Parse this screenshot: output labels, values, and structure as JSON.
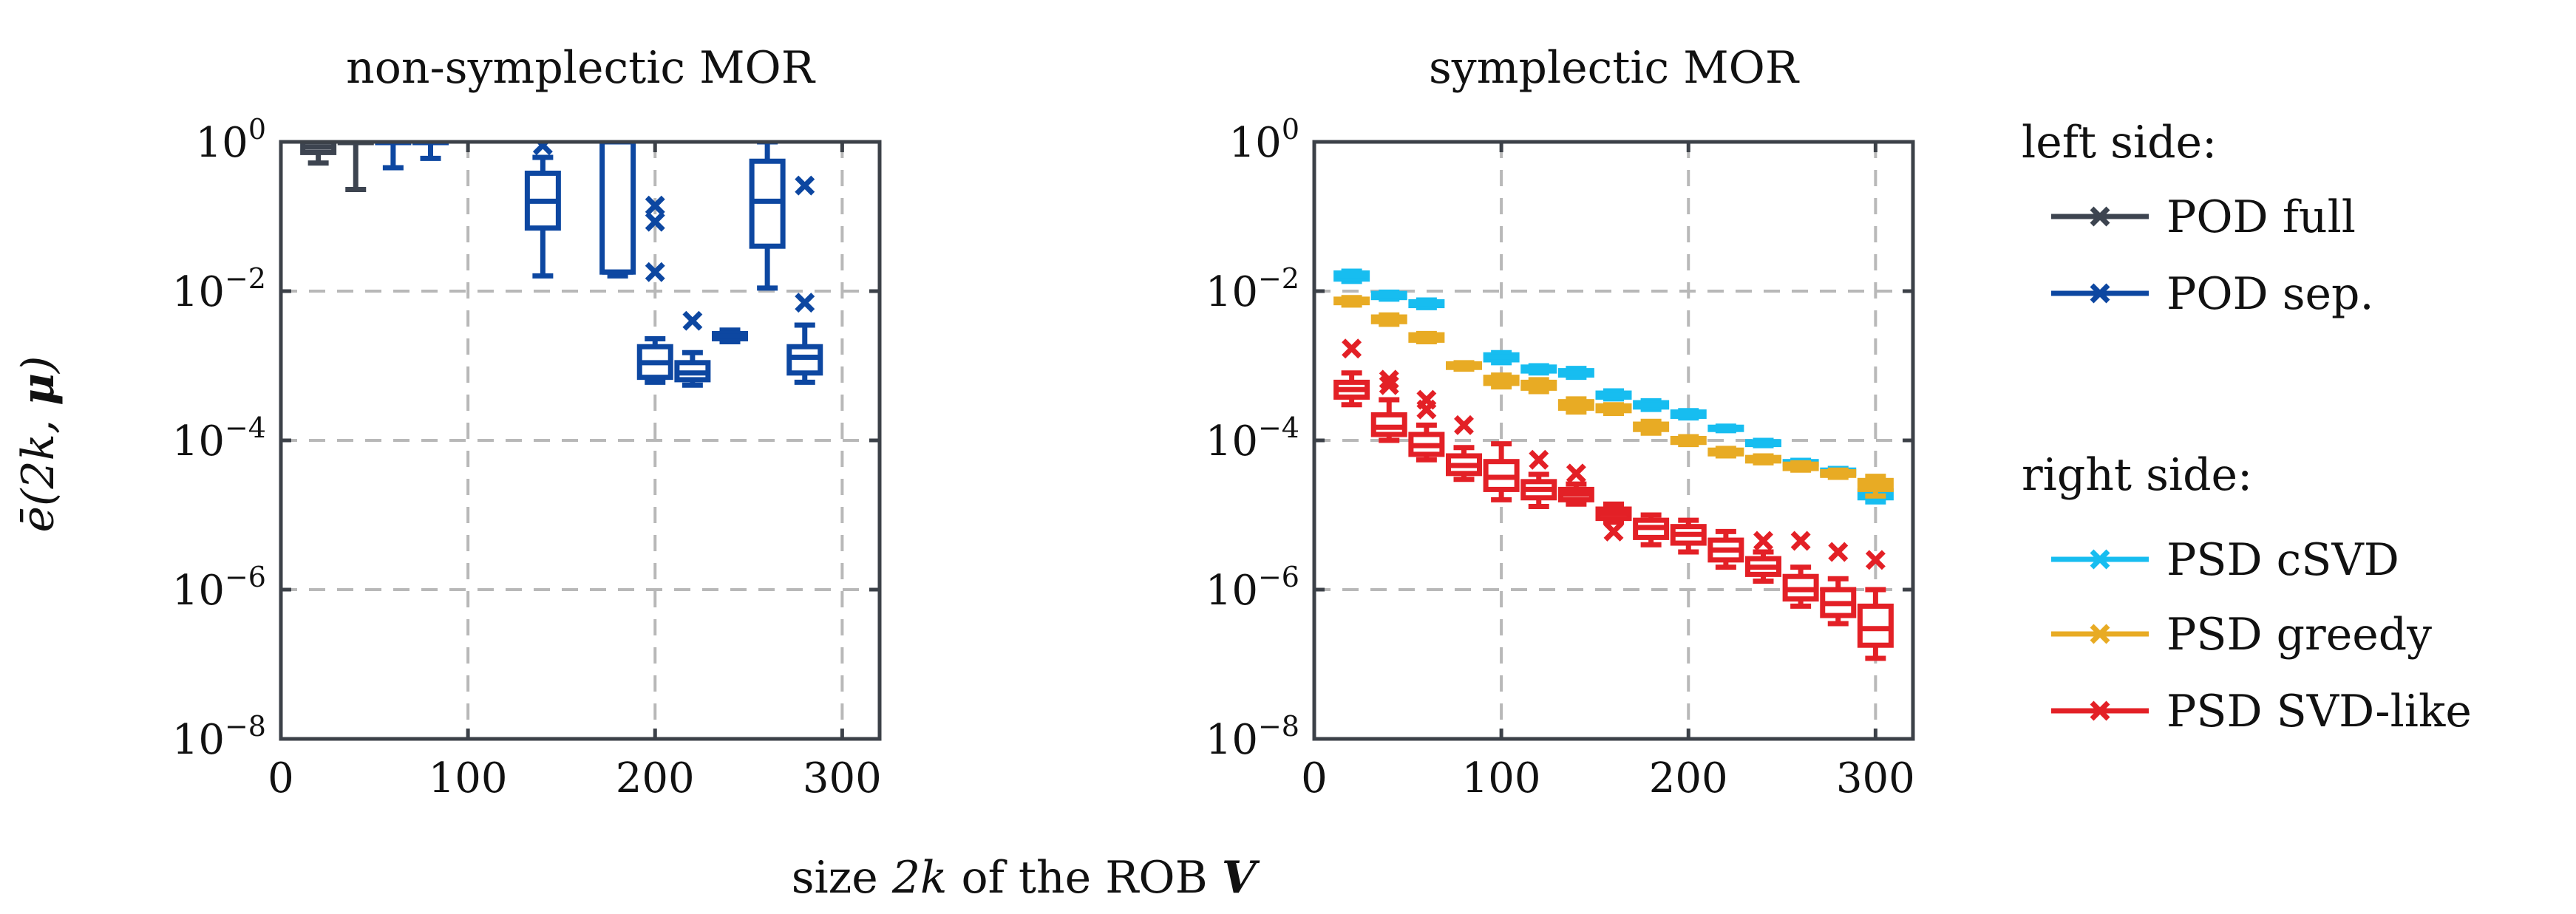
{
  "figure": {
    "xlabel_prefix": "size ",
    "xlabel_math": "2k",
    "xlabel_mid": " of the ROB ",
    "xlabel_bold": "V",
    "ylabel_prefix": "ē(2k, ",
    "ylabel_bold": "μ",
    "ylabel_suffix": ")"
  },
  "legend": {
    "groups": [
      {
        "title": "left side:",
        "entries": [
          {
            "label": "POD full",
            "series": "POD full"
          },
          {
            "label": "POD sep.",
            "series": "POD sep."
          }
        ]
      },
      {
        "title": "right side:",
        "entries": [
          {
            "label": "PSD cSVD",
            "series": "PSD cSVD"
          },
          {
            "label": "PSD greedy",
            "series": "PSD greedy"
          },
          {
            "label": "PSD SVD-like",
            "series": "PSD SVD-like"
          }
        ]
      }
    ]
  },
  "colors": {
    "POD full": "#3d4450",
    "POD sep.": "#0d47a1",
    "PSD cSVD": "#17bdf0",
    "PSD greedy": "#e8ab24",
    "PSD SVD-like": "#e32026"
  },
  "chart_data": [
    {
      "type": "box",
      "title": "non-symplectic MOR",
      "xlabel": "size 2k of the ROB V",
      "ylabel": "ē(2k, μ)",
      "yscale": "log",
      "xlim": [
        0,
        320
      ],
      "ylim": [
        1e-08,
        1
      ],
      "xticks": [
        "0",
        "100",
        "200",
        "300"
      ],
      "yticks": [
        {
          "base": "10",
          "exp": "0"
        },
        {
          "base": "10",
          "exp": "−2"
        },
        {
          "base": "10",
          "exp": "−4"
        },
        {
          "base": "10",
          "exp": "−6"
        },
        {
          "base": "10",
          "exp": "−8"
        }
      ],
      "grid": true,
      "series": [
        {
          "name": "POD full",
          "boxes": [
            {
              "x": 20,
              "whislo": 0.52,
              "q1": 0.72,
              "med": 0.85,
              "q3": 1.0,
              "whishi": 1.0,
              "fliers": []
            },
            {
              "x": 40,
              "whislo": 0.23,
              "q1": 1.0,
              "med": 1.0,
              "q3": 1.0,
              "whishi": 1.0,
              "fliers": []
            }
          ]
        },
        {
          "name": "POD sep.",
          "boxes": [
            {
              "x": 60,
              "whislo": 0.45,
              "q1": 1.0,
              "med": 1.0,
              "q3": 1.0,
              "whishi": 1.0,
              "fliers": []
            },
            {
              "x": 80,
              "whislo": 0.6,
              "q1": 1.0,
              "med": 1.0,
              "q3": 1.0,
              "whishi": 1.0,
              "fliers": []
            },
            {
              "x": 140,
              "whislo": 0.016,
              "q1": 0.07,
              "med": 0.16,
              "q3": 0.38,
              "whishi": 0.62,
              "fliers": [
                0.9
              ]
            },
            {
              "x": 180,
              "whislo": 0.016,
              "q1": 0.018,
              "med": 0.018,
              "q3": 1.0,
              "whishi": 1.0,
              "fliers": []
            },
            {
              "x": 200,
              "whislo": 0.0006,
              "q1": 0.0007,
              "med": 0.0011,
              "q3": 0.0018,
              "whishi": 0.0023,
              "fliers": [
                0.14,
                0.085,
                0.018
              ]
            },
            {
              "x": 220,
              "whislo": 0.00055,
              "q1": 0.00065,
              "med": 0.0008,
              "q3": 0.0011,
              "whishi": 0.0015,
              "fliers": [
                0.004
              ]
            },
            {
              "x": 240,
              "whislo": 0.0021,
              "q1": 0.0023,
              "med": 0.0025,
              "q3": 0.0027,
              "whishi": 0.003,
              "fliers": []
            },
            {
              "x": 260,
              "whislo": 0.011,
              "q1": 0.04,
              "med": 0.16,
              "q3": 0.55,
              "whishi": 1.0,
              "fliers": []
            },
            {
              "x": 280,
              "whislo": 0.0006,
              "q1": 0.0008,
              "med": 0.0013,
              "q3": 0.0018,
              "whishi": 0.0035,
              "fliers": [
                0.26,
                0.007
              ]
            }
          ]
        }
      ]
    },
    {
      "type": "box",
      "title": "symplectic MOR",
      "xlabel": "size 2k of the ROB V",
      "ylabel": "ē(2k, μ)",
      "yscale": "log",
      "xlim": [
        0,
        320
      ],
      "ylim": [
        1e-08,
        1
      ],
      "xticks": [
        "0",
        "100",
        "200",
        "300"
      ],
      "yticks": [
        {
          "base": "10",
          "exp": "0"
        },
        {
          "base": "10",
          "exp": "−2"
        },
        {
          "base": "10",
          "exp": "−4"
        },
        {
          "base": "10",
          "exp": "−6"
        },
        {
          "base": "10",
          "exp": "−8"
        }
      ],
      "grid": true,
      "series": [
        {
          "name": "PSD cSVD",
          "boxes": [
            {
              "x": 20,
              "whislo": 0.0135,
              "q1": 0.0145,
              "med": 0.016,
              "q3": 0.0175,
              "whishi": 0.0185,
              "fliers": []
            },
            {
              "x": 40,
              "whislo": 0.0078,
              "q1": 0.0082,
              "med": 0.0088,
              "q3": 0.0093,
              "whishi": 0.0097,
              "fliers": []
            },
            {
              "x": 60,
              "whislo": 0.006,
              "q1": 0.0064,
              "med": 0.0068,
              "q3": 0.0072,
              "whishi": 0.0076,
              "fliers": []
            },
            {
              "x": 100,
              "whislo": 0.0011,
              "q1": 0.0012,
              "med": 0.00132,
              "q3": 0.0014,
              "whishi": 0.0015,
              "fliers": []
            },
            {
              "x": 120,
              "whislo": 0.0008,
              "q1": 0.00085,
              "med": 0.0009,
              "q3": 0.00096,
              "whishi": 0.001,
              "fliers": []
            },
            {
              "x": 140,
              "whislo": 0.0007,
              "q1": 0.00075,
              "med": 0.0008,
              "q3": 0.00086,
              "whishi": 0.00092,
              "fliers": []
            },
            {
              "x": 160,
              "whislo": 0.00036,
              "q1": 0.00038,
              "med": 0.0004,
              "q3": 0.00043,
              "whishi": 0.00046,
              "fliers": []
            },
            {
              "x": 180,
              "whislo": 0.00026,
              "q1": 0.00028,
              "med": 0.0003,
              "q3": 0.00032,
              "whishi": 0.00034,
              "fliers": []
            },
            {
              "x": 200,
              "whislo": 0.0002,
              "q1": 0.00021,
              "med": 0.00022,
              "q3": 0.00024,
              "whishi": 0.00025,
              "fliers": []
            },
            {
              "x": 220,
              "whislo": 0.000135,
              "q1": 0.00014,
              "med": 0.000145,
              "q3": 0.00015,
              "whishi": 0.000155,
              "fliers": []
            },
            {
              "x": 240,
              "whislo": 8.5e-05,
              "q1": 8.8e-05,
              "med": 9.2e-05,
              "q3": 9.6e-05,
              "whishi": 0.0001,
              "fliers": []
            },
            {
              "x": 260,
              "whislo": 4.6e-05,
              "q1": 4.8e-05,
              "med": 5e-05,
              "q3": 5.2e-05,
              "whishi": 5.4e-05,
              "fliers": []
            },
            {
              "x": 280,
              "whislo": 3.4e-05,
              "q1": 3.6e-05,
              "med": 3.8e-05,
              "q3": 4e-05,
              "whishi": 4.2e-05,
              "fliers": []
            },
            {
              "x": 300,
              "whislo": 1.5e-05,
              "q1": 1.7e-05,
              "med": 1.9e-05,
              "q3": 2.1e-05,
              "whishi": 2.4e-05,
              "fliers": []
            }
          ]
        },
        {
          "name": "PSD greedy",
          "boxes": [
            {
              "x": 20,
              "whislo": 0.0065,
              "q1": 0.007,
              "med": 0.0074,
              "q3": 0.0078,
              "whishi": 0.0082,
              "fliers": []
            },
            {
              "x": 40,
              "whislo": 0.0036,
              "q1": 0.0039,
              "med": 0.0042,
              "q3": 0.0045,
              "whishi": 0.0048,
              "fliers": []
            },
            {
              "x": 60,
              "whislo": 0.0021,
              "q1": 0.0022,
              "med": 0.0024,
              "q3": 0.0026,
              "whishi": 0.0027,
              "fliers": []
            },
            {
              "x": 80,
              "whislo": 0.0009,
              "q1": 0.00095,
              "med": 0.001,
              "q3": 0.00106,
              "whishi": 0.0011,
              "fliers": []
            },
            {
              "x": 100,
              "whislo": 0.00052,
              "q1": 0.00058,
              "med": 0.00064,
              "q3": 0.0007,
              "whishi": 0.00075,
              "fliers": []
            },
            {
              "x": 120,
              "whislo": 0.00045,
              "q1": 0.0005,
              "med": 0.00055,
              "q3": 0.0006,
              "whishi": 0.00065,
              "fliers": []
            },
            {
              "x": 140,
              "whislo": 0.00024,
              "q1": 0.00027,
              "med": 0.0003,
              "q3": 0.00033,
              "whishi": 0.00036,
              "fliers": []
            },
            {
              "x": 160,
              "whislo": 0.00023,
              "q1": 0.00025,
              "med": 0.00027,
              "q3": 0.00029,
              "whishi": 0.0003,
              "fliers": []
            },
            {
              "x": 180,
              "whislo": 0.000125,
              "q1": 0.00014,
              "med": 0.00015,
              "q3": 0.000165,
              "whishi": 0.00018,
              "fliers": []
            },
            {
              "x": 200,
              "whislo": 8.8e-05,
              "q1": 9.4e-05,
              "med": 0.0001,
              "q3": 0.000106,
              "whishi": 0.000112,
              "fliers": []
            },
            {
              "x": 220,
              "whislo": 6.2e-05,
              "q1": 6.6e-05,
              "med": 7e-05,
              "q3": 7.4e-05,
              "whishi": 7.8e-05,
              "fliers": []
            },
            {
              "x": 240,
              "whislo": 5e-05,
              "q1": 5.3e-05,
              "med": 5.6e-05,
              "q3": 5.9e-05,
              "whishi": 6.2e-05,
              "fliers": []
            },
            {
              "x": 260,
              "whislo": 4e-05,
              "q1": 4.2e-05,
              "med": 4.5e-05,
              "q3": 4.8e-05,
              "whishi": 5e-05,
              "fliers": []
            },
            {
              "x": 280,
              "whislo": 3.2e-05,
              "q1": 3.4e-05,
              "med": 3.6e-05,
              "q3": 3.8e-05,
              "whishi": 4e-05,
              "fliers": []
            },
            {
              "x": 300,
              "whislo": 1.8e-05,
              "q1": 2.2e-05,
              "med": 2.5e-05,
              "q3": 2.9e-05,
              "whishi": 3.3e-05,
              "fliers": []
            }
          ]
        },
        {
          "name": "PSD SVD-like",
          "boxes": [
            {
              "x": 20,
              "whislo": 0.0003,
              "q1": 0.00038,
              "med": 0.00048,
              "q3": 0.0006,
              "whishi": 0.0008,
              "fliers": [
                0.0017
              ]
            },
            {
              "x": 40,
              "whislo": 0.0001,
              "q1": 0.00012,
              "med": 0.00015,
              "q3": 0.00022,
              "whishi": 0.00035,
              "fliers": [
                0.00065,
                0.00055
              ]
            },
            {
              "x": 60,
              "whislo": 5.5e-05,
              "q1": 6.5e-05,
              "med": 8.5e-05,
              "q3": 0.00012,
              "whishi": 0.00016,
              "fliers": [
                0.00035,
                0.00026
              ]
            },
            {
              "x": 80,
              "whislo": 3e-05,
              "q1": 3.6e-05,
              "med": 4.6e-05,
              "q3": 6.2e-05,
              "whishi": 8e-05,
              "fliers": [
                0.00016
              ]
            },
            {
              "x": 100,
              "whislo": 1.6e-05,
              "q1": 2.2e-05,
              "med": 3.2e-05,
              "q3": 5.2e-05,
              "whishi": 9e-05,
              "fliers": []
            },
            {
              "x": 120,
              "whislo": 1.3e-05,
              "q1": 1.7e-05,
              "med": 2.2e-05,
              "q3": 2.8e-05,
              "whishi": 3.5e-05,
              "fliers": [
                5.5e-05
              ]
            },
            {
              "x": 140,
              "whislo": 1.4e-05,
              "q1": 1.6e-05,
              "med": 1.9e-05,
              "q3": 2.2e-05,
              "whishi": 2.6e-05,
              "fliers": [
                3.6e-05
              ]
            },
            {
              "x": 160,
              "whislo": 8e-06,
              "q1": 9e-06,
              "med": 1.05e-05,
              "q3": 1.2e-05,
              "whishi": 1.4e-05,
              "fliers": [
                6e-06
              ]
            },
            {
              "x": 180,
              "whislo": 4e-06,
              "q1": 5e-06,
              "med": 6.8e-06,
              "q3": 8.5e-06,
              "whishi": 1e-05,
              "fliers": []
            },
            {
              "x": 200,
              "whislo": 3.2e-06,
              "q1": 4.2e-06,
              "med": 5.5e-06,
              "q3": 7e-06,
              "whishi": 8.5e-06,
              "fliers": []
            },
            {
              "x": 220,
              "whislo": 2e-06,
              "q1": 2.5e-06,
              "med": 3.4e-06,
              "q3": 4.6e-06,
              "whishi": 6e-06,
              "fliers": []
            },
            {
              "x": 240,
              "whislo": 1.3e-06,
              "q1": 1.6e-06,
              "med": 2e-06,
              "q3": 2.6e-06,
              "whishi": 3.2e-06,
              "fliers": [
                4.5e-06
              ]
            },
            {
              "x": 260,
              "whislo": 6e-07,
              "q1": 7.5e-07,
              "med": 1e-06,
              "q3": 1.5e-06,
              "whishi": 2e-06,
              "fliers": [
                4.5e-06
              ]
            },
            {
              "x": 280,
              "whislo": 3.5e-07,
              "q1": 4.5e-07,
              "med": 6.5e-07,
              "q3": 1e-06,
              "whishi": 1.4e-06,
              "fliers": [
                3.2e-06
              ]
            },
            {
              "x": 300,
              "whislo": 1.2e-07,
              "q1": 1.8e-07,
              "med": 3e-07,
              "q3": 6e-07,
              "whishi": 1e-06,
              "fliers": [
                2.5e-06
              ]
            }
          ]
        }
      ]
    }
  ]
}
